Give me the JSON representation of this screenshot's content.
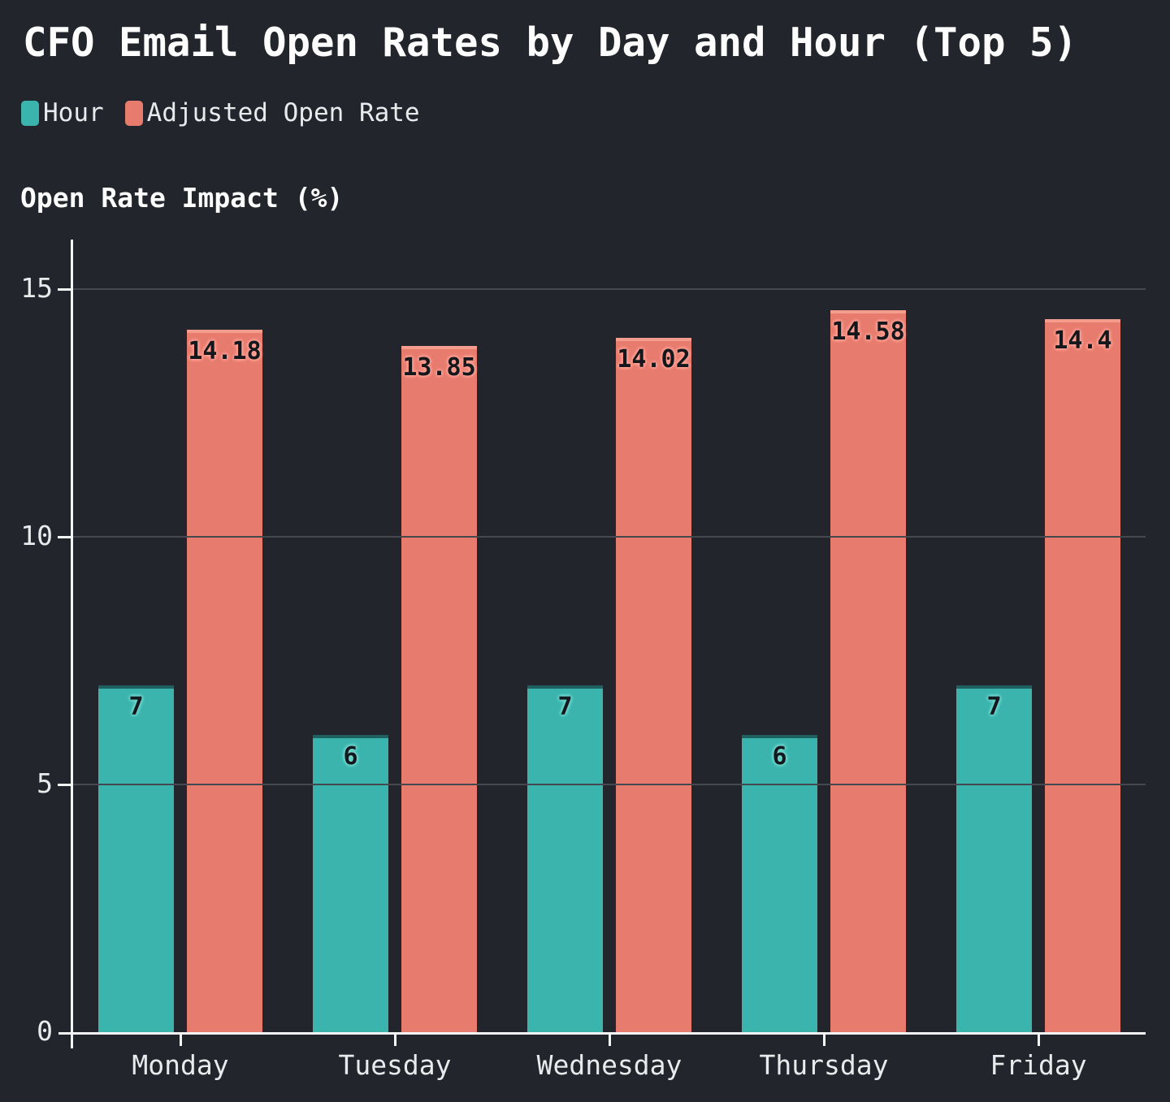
{
  "title": "CFO Email Open Rates by Day and Hour (Top 5)",
  "legend": {
    "items": [
      {
        "label": "Hour",
        "color": "#3bb4ad"
      },
      {
        "label": "Adjusted Open Rate",
        "color": "#e77b6e"
      }
    ]
  },
  "y_axis_title": "Open Rate Impact (%)",
  "colors": {
    "background": "#22252b",
    "axis": "#f5f5f6",
    "gridline": "#45484e",
    "tick_label": "#e9eaec",
    "title": "#ffffff",
    "bar_value_label": "#14171c"
  },
  "chart_data": {
    "type": "bar",
    "title": "CFO Email Open Rates by Day and Hour (Top 5)",
    "xlabel": "",
    "ylabel": "Open Rate Impact (%)",
    "categories": [
      "Monday",
      "Tuesday",
      "Wednesday",
      "Thursday",
      "Friday"
    ],
    "series": [
      {
        "name": "Hour",
        "color": "#3bb4ad",
        "label_glow": "#6fd6cf",
        "top_edge": "rgba(10,30,35,0.55)",
        "values": [
          7,
          6,
          7,
          6,
          7
        ],
        "value_labels": [
          "7",
          "6",
          "7",
          "6",
          "7"
        ]
      },
      {
        "name": "Adjusted Open Rate",
        "color": "#e77b6e",
        "label_glow": "#ffa093",
        "top_edge": "rgba(255,185,170,0.55)",
        "values": [
          14.18,
          13.85,
          14.02,
          14.58,
          14.4
        ],
        "value_labels": [
          "14.18",
          "13.85",
          "14.02",
          "14.58",
          "14.4"
        ]
      }
    ],
    "ylim": [
      0,
      16
    ],
    "yticks": [
      0,
      5,
      10,
      15
    ],
    "grid": true,
    "legend_position": "top-left"
  }
}
